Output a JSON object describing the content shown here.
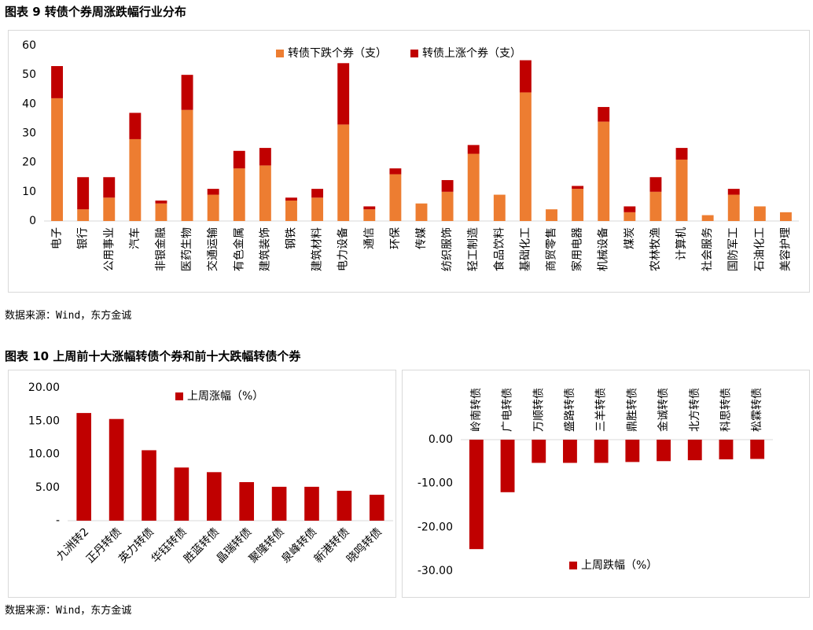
{
  "captions": [
    "图表 9  转债个券周涨跌幅行业分布",
    "图表 10  上周前十大涨幅转债个券和前十大跌幅转债个券"
  ],
  "sources": [
    "数据来源：Wind，东方金诚",
    "数据来源：Wind，东方金诚"
  ],
  "chart_data": [
    {
      "type": "bar",
      "stacked": true,
      "legend": "top",
      "categories": [
        "电子",
        "银行",
        "公用事业",
        "汽车",
        "非银金融",
        "医药生物",
        "交通运输",
        "有色金属",
        "建筑装饰",
        "钢铁",
        "建筑材料",
        "电力设备",
        "通信",
        "环保",
        "传媒",
        "纺织服饰",
        "轻工制造",
        "食品饮料",
        "基础化工",
        "商贸零售",
        "家用电器",
        "机械设备",
        "煤炭",
        "农林牧渔",
        "计算机",
        "社会服务",
        "国防军工",
        "石油化工",
        "美容护理"
      ],
      "series": [
        {
          "name": "转债下跌个券（支）",
          "color": "#ED7D31",
          "values": [
            42,
            4,
            8,
            28,
            6,
            38,
            9,
            18,
            19,
            7,
            8,
            33,
            4,
            16,
            6,
            10,
            23,
            9,
            44,
            4,
            11,
            34,
            3,
            10,
            21,
            2,
            9,
            5,
            3
          ]
        },
        {
          "name": "转债上涨个券（支）",
          "color": "#C00000",
          "values": [
            11,
            11,
            7,
            9,
            1,
            12,
            2,
            6,
            6,
            1,
            3,
            21,
            1,
            2,
            0,
            4,
            3,
            0,
            11,
            0,
            1,
            5,
            2,
            5,
            4,
            0,
            2,
            0,
            0
          ]
        }
      ],
      "ylim": [
        0,
        60
      ],
      "yticks": [
        0,
        10,
        20,
        30,
        40,
        50,
        60
      ]
    },
    {
      "type": "bar",
      "legend": "top",
      "categories": [
        "九洲转2",
        "正丹转债",
        "英力转债",
        "华钰转债",
        "胜蓝转债",
        "晶瑞转债",
        "聚隆转债",
        "泉峰转债",
        "新港转债",
        "晓鸣转债"
      ],
      "series": [
        {
          "name": "上周涨幅（%）",
          "color": "#C00000",
          "values": [
            16.2,
            15.3,
            10.6,
            8.0,
            7.3,
            5.8,
            5.1,
            5.1,
            4.5,
            3.9
          ]
        }
      ],
      "ylim": [
        0,
        20
      ],
      "yticks": [
        {
          "value": 0,
          "label": "-"
        },
        {
          "value": 5,
          "label": "5.00"
        },
        {
          "value": 10,
          "label": "10.00"
        },
        {
          "value": 15,
          "label": "15.00"
        },
        {
          "value": 20,
          "label": "20.00"
        }
      ]
    },
    {
      "type": "bar",
      "legend": "bottom",
      "tick_color": "#C00000",
      "categories": [
        "岭南转债",
        "广电转债",
        "万顺转债",
        "盛路转债",
        "三羊转债",
        "鼎胜转债",
        "金诚转债",
        "北方转债",
        "科思转债",
        "松霖转债"
      ],
      "series": [
        {
          "name": "上周跌幅（%）",
          "color": "#C00000",
          "values": [
            -25.0,
            -12.0,
            -5.3,
            -5.3,
            -5.3,
            -5.1,
            -4.9,
            -4.7,
            -4.5,
            -4.4
          ]
        }
      ],
      "ylim": [
        -30,
        0
      ],
      "yticks": [
        {
          "value": 0,
          "label": "0.00"
        },
        {
          "value": -10,
          "label": "-10.00"
        },
        {
          "value": -20,
          "label": "-20.00"
        },
        {
          "value": -30,
          "label": "-30.00"
        }
      ]
    }
  ]
}
